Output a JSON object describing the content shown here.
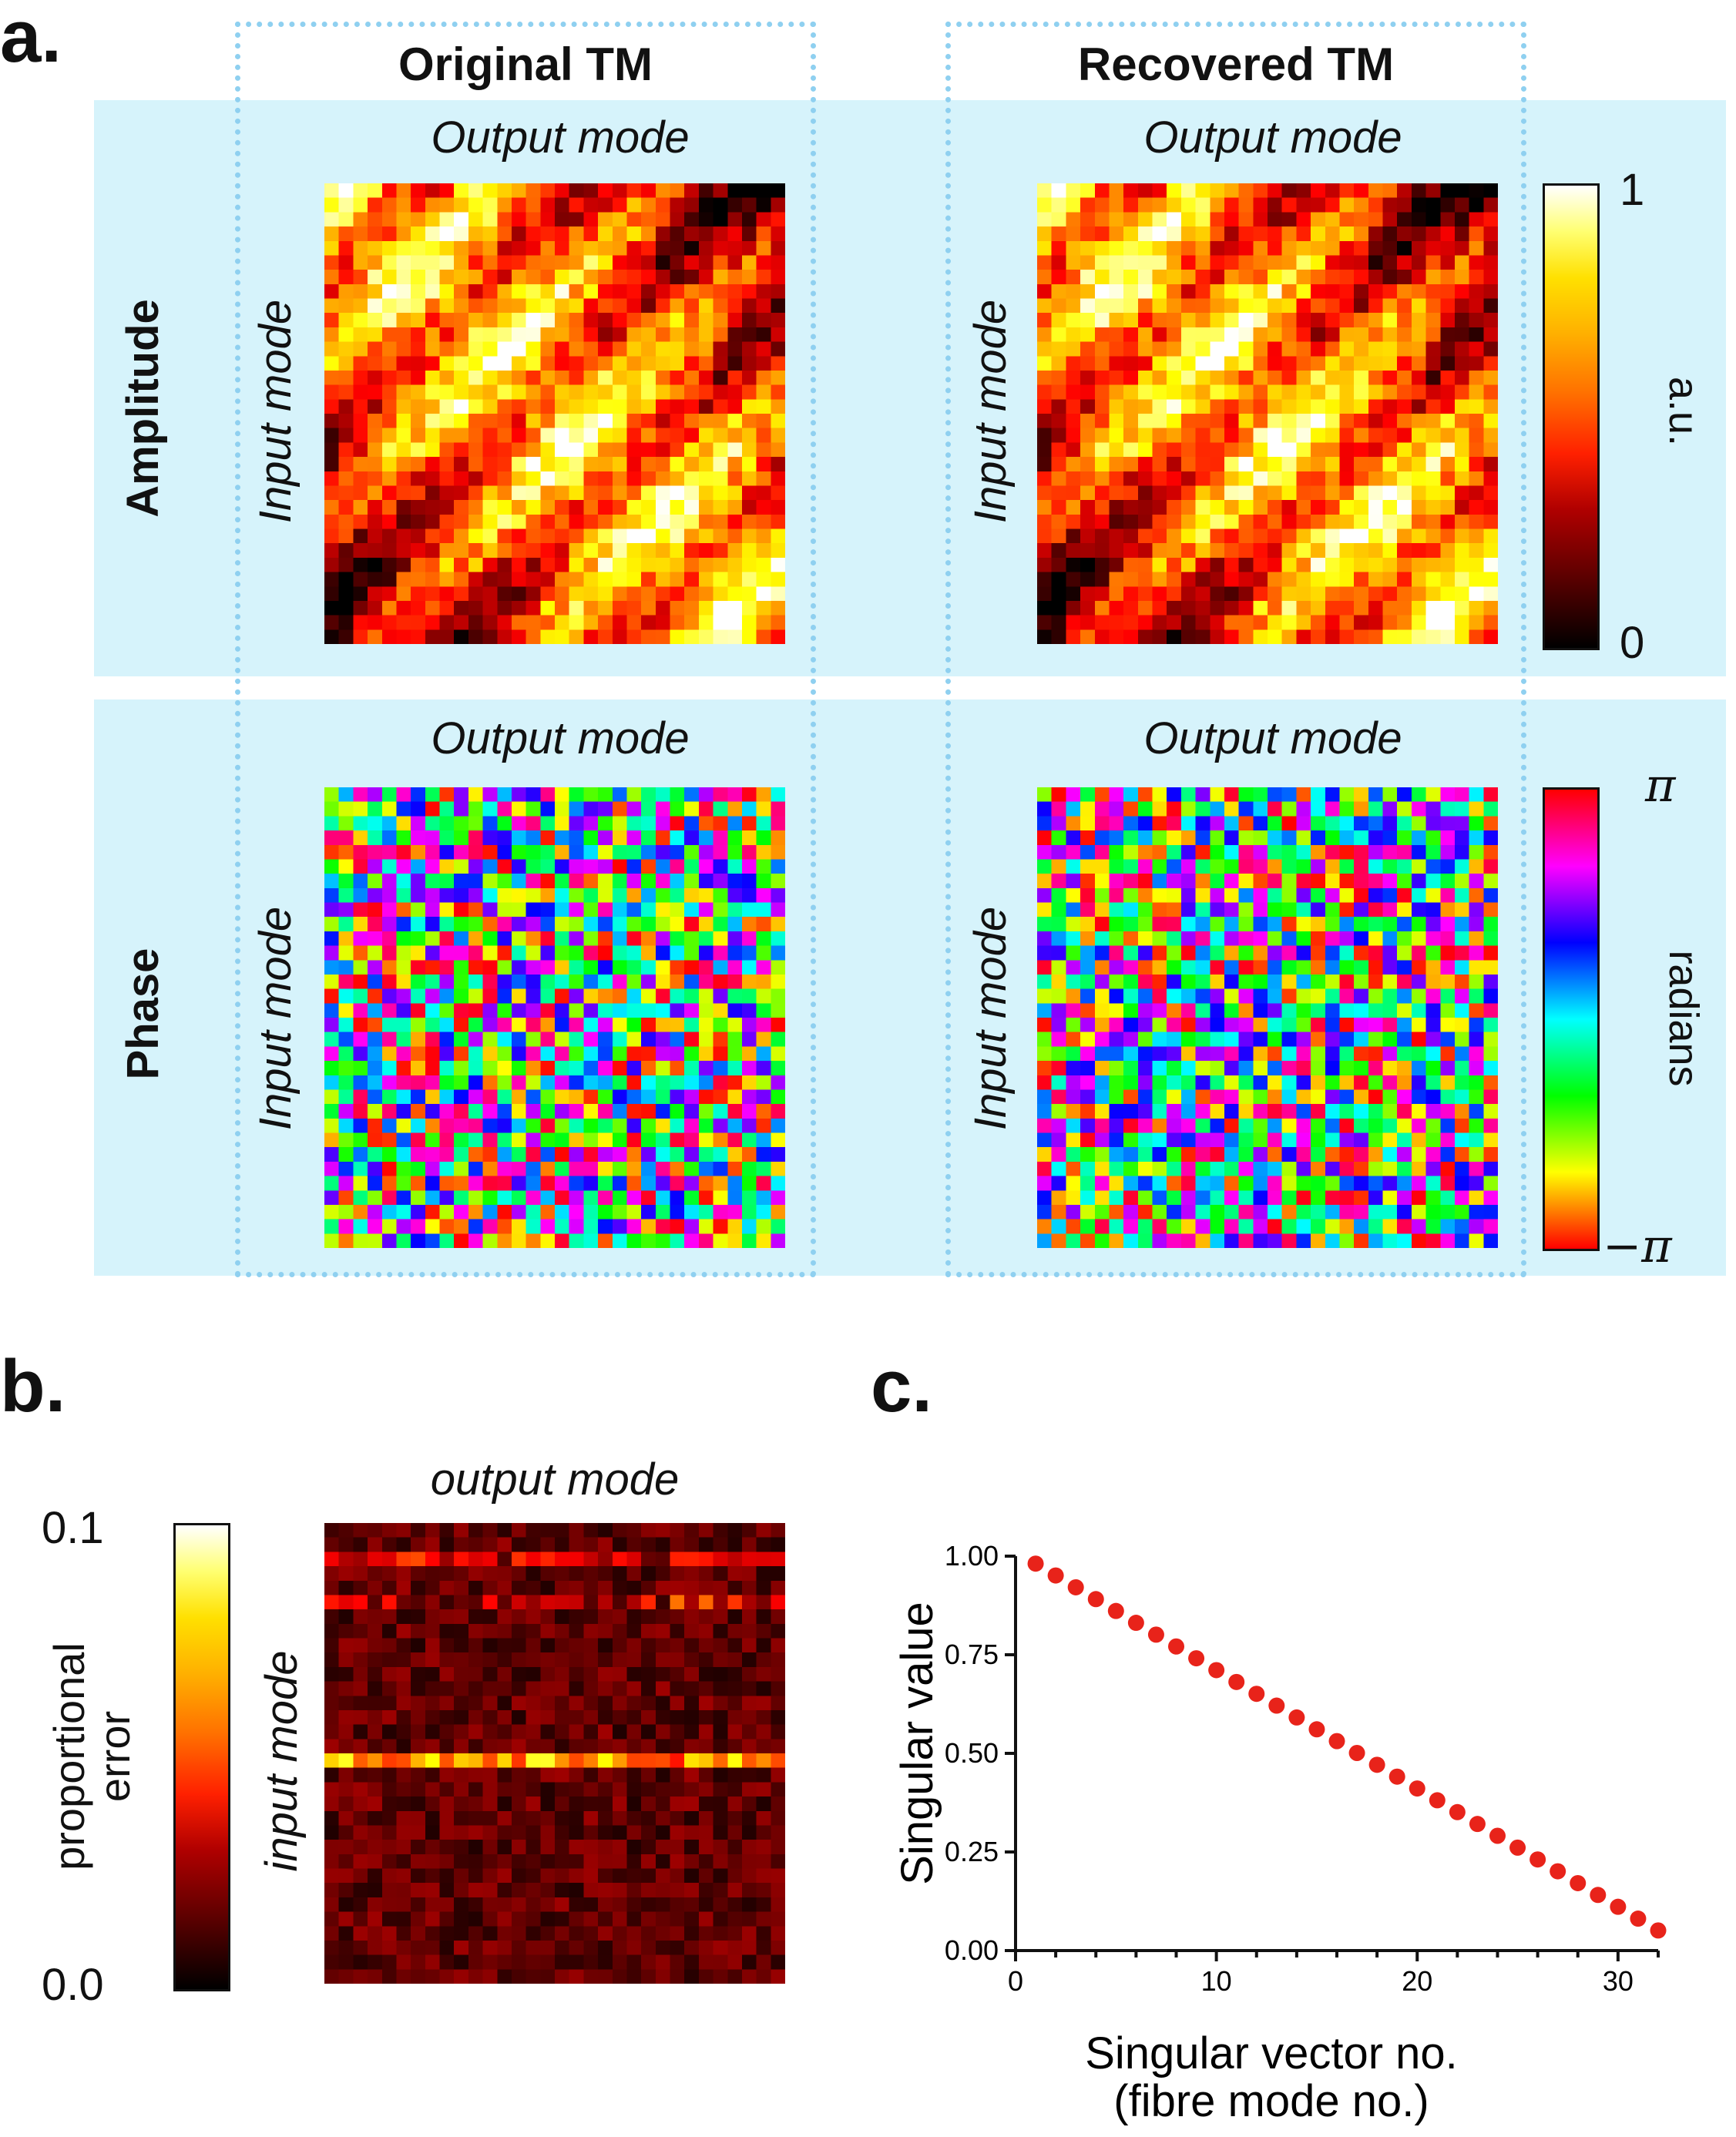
{
  "panel_labels": {
    "a": "a.",
    "b": "b.",
    "c": "c."
  },
  "panel_a": {
    "col_titles": [
      "Original TM",
      "Recovered TM"
    ],
    "row_titles": [
      "Amplitude",
      "Phase"
    ],
    "output_label": "Output mode",
    "input_label": "Input mode",
    "colors": {
      "band": "#d6f3fb",
      "dotted_box": "#8fd0f0"
    },
    "amplitude_colorbar": {
      "max": "1",
      "min": "0",
      "label": "a.u.",
      "colormap": "hot"
    },
    "phase_colorbar": {
      "max": "π",
      "min": "−π",
      "label": "radians",
      "colormap": "hsv"
    },
    "matrix_size": 32
  },
  "panel_b": {
    "output_label": "output mode",
    "input_label": "input mode",
    "colorbar": {
      "max": "0.1",
      "min": "0.0",
      "label_line1": "proportional",
      "label_line2": "error",
      "colormap": "hot"
    }
  },
  "chart_data": {
    "type": "scatter",
    "title": "",
    "xlabel_line1": "Singular vector no.",
    "xlabel_line2": "(fibre mode no.)",
    "ylabel": "Singular value",
    "xlim": [
      0,
      32
    ],
    "ylim": [
      0,
      1.0
    ],
    "xticks": [
      "0",
      "10",
      "20",
      "30"
    ],
    "yticks": [
      "0.00",
      "0.25",
      "0.50",
      "0.75",
      "1.00"
    ],
    "marker_color": "#e8231a",
    "series": [
      {
        "x": [
          1,
          2,
          3,
          4,
          5,
          6,
          7,
          8,
          9,
          10,
          11,
          12,
          13,
          14,
          15,
          16,
          17,
          18,
          19,
          20,
          21,
          22,
          23,
          24,
          25,
          26,
          27,
          28,
          29,
          30,
          31,
          32
        ],
        "y": [
          0.981,
          0.951,
          0.921,
          0.891,
          0.861,
          0.831,
          0.801,
          0.771,
          0.741,
          0.711,
          0.681,
          0.651,
          0.621,
          0.591,
          0.561,
          0.531,
          0.501,
          0.471,
          0.441,
          0.411,
          0.381,
          0.351,
          0.321,
          0.291,
          0.261,
          0.231,
          0.201,
          0.171,
          0.141,
          0.111,
          0.081,
          0.051
        ]
      }
    ]
  }
}
